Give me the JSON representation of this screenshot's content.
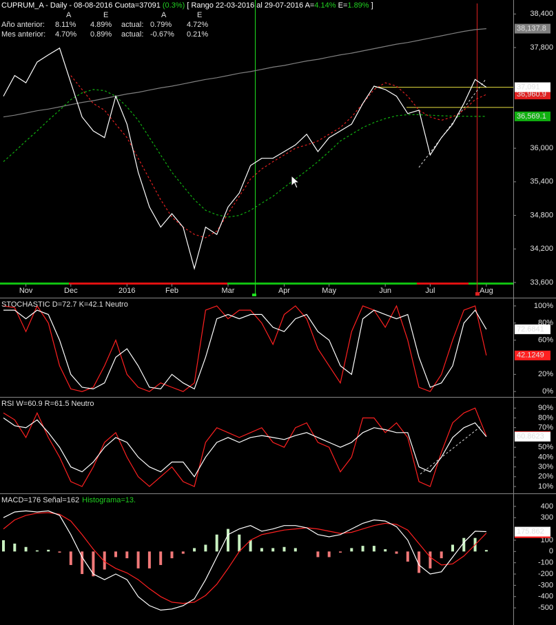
{
  "header": [
    "CUPRUM_A - Daily - 08-08-2016 Cuota=37091",
    "(0.3%)",
    "[ Rango 22-03-2016 al 29-07-2016 A=",
    "4.14%",
    "E=",
    "1.89%",
    "]"
  ],
  "stats": {
    "columns": [
      "A",
      "E",
      "A",
      "E"
    ],
    "rows": [
      {
        "label": "Año anterior:",
        "values": [
          "8.11%",
          "4.89%"
        ],
        "label2": "actual:",
        "values2": [
          "0.79%",
          "4.72%"
        ]
      },
      {
        "label": "Mes anterior:",
        "values": [
          "4.70%",
          "0.89%"
        ],
        "label2": "actual:",
        "values2": [
          "-0.67%",
          "0.21%"
        ]
      }
    ]
  },
  "chart_data": [
    {
      "type": "line",
      "categories": [
        null,
        null,
        "Nov",
        null,
        null,
        null,
        "Dec",
        null,
        null,
        null,
        null,
        "2016",
        null,
        null,
        null,
        "Feb",
        null,
        null,
        null,
        null,
        "Mar",
        null,
        null,
        null,
        null,
        "Apr",
        null,
        null,
        null,
        "May",
        null,
        null,
        null,
        null,
        "Jun",
        null,
        null,
        null,
        "Jul",
        null,
        null,
        null,
        null,
        "Aug"
      ],
      "ylim": [
        33575,
        38650
      ],
      "yticks": [
        {
          "value": 38400,
          "label": "38,400"
        },
        {
          "value": 37800,
          "label": "37,800"
        },
        {
          "value": 36000,
          "label": "36,000"
        },
        {
          "value": 35400,
          "label": "35,400"
        },
        {
          "value": 34800,
          "label": "34,800"
        },
        {
          "value": 34200,
          "label": "34,200"
        },
        {
          "value": 33600,
          "label": "33,600"
        }
      ],
      "hlines": [
        37091,
        36730
      ],
      "hline_color": "#e8e040",
      "series": [
        {
          "color": "#808080",
          "dash": false,
          "last_label": "38,137.8",
          "values": [
            36560,
            36590,
            36630,
            36670,
            36700,
            36740,
            36780,
            36820,
            36850,
            36890,
            36930,
            36970,
            37000,
            37040,
            37080,
            37110,
            37150,
            37190,
            37230,
            37260,
            37300,
            37340,
            37370,
            37410,
            37450,
            37480,
            37520,
            37560,
            37590,
            37630,
            37670,
            37700,
            37740,
            37780,
            37820,
            37860,
            37890,
            37930,
            37970,
            38010,
            38050,
            38090,
            38120,
            38137.8
          ]
        },
        {
          "color": "#10b010",
          "dash": true,
          "last_label": "36,569.1",
          "values": [
            35760,
            35940,
            36130,
            36310,
            36500,
            36680,
            36870,
            36990,
            37050,
            37030,
            36930,
            36740,
            36500,
            36190,
            35880,
            35570,
            35320,
            35080,
            34890,
            34810,
            34770,
            34800,
            34890,
            35020,
            35140,
            35300,
            35450,
            35600,
            35760,
            35940,
            36130,
            36250,
            36370,
            36460,
            36530,
            36580,
            36600,
            36600,
            36590,
            36580,
            36575,
            36572,
            36570,
            36569.1
          ]
        },
        {
          "color": "#e02020",
          "dash": true,
          "last_label": "36,960.9",
          "values": [
            null,
            null,
            null,
            null,
            null,
            null,
            37300,
            37050,
            36800,
            36680,
            36430,
            36190,
            35820,
            35450,
            35080,
            34770,
            34590,
            34460,
            34400,
            34520,
            34830,
            35140,
            35450,
            35630,
            35760,
            35880,
            36000,
            36060,
            36130,
            36250,
            36370,
            36560,
            36800,
            37050,
            37170,
            37110,
            36930,
            36680,
            36560,
            36500,
            36560,
            36680,
            36870,
            36960.9
          ]
        },
        {
          "color": "#ffffff",
          "dash": false,
          "last_label": "37,091",
          "values": [
            36930,
            37300,
            37170,
            37540,
            37670,
            37790,
            37170,
            36560,
            36310,
            36190,
            36930,
            36430,
            35570,
            34950,
            34590,
            34830,
            34590,
            33850,
            34590,
            34460,
            34950,
            35200,
            35690,
            35820,
            35820,
            35940,
            36060,
            36250,
            35940,
            36190,
            36310,
            36430,
            36800,
            37110,
            37050,
            36930,
            36620,
            36680,
            35880,
            36190,
            36430,
            36800,
            37230,
            37091
          ]
        }
      ]
    },
    {
      "type": "line",
      "title": "STOCHASTIC D=72.7 K=42.1 Neutro",
      "ylim": [
        -5.5,
        108
      ],
      "yticks": [
        {
          "value": 100,
          "label": "100%"
        },
        {
          "value": 80,
          "label": "80%"
        },
        {
          "value": 60,
          "label": "60%"
        },
        {
          "value": 20,
          "label": "20%"
        },
        {
          "value": 0,
          "label": "0%"
        }
      ],
      "series": [
        {
          "color": "#ff2020",
          "dash": false,
          "last_label": "42.1249",
          "values": [
            100,
            98,
            70,
            100,
            80,
            30,
            3,
            0,
            5,
            30,
            60,
            20,
            5,
            0,
            10,
            5,
            0,
            10,
            95,
            100,
            85,
            95,
            95,
            80,
            55,
            90,
            100,
            85,
            50,
            30,
            10,
            70,
            100,
            95,
            75,
            100,
            60,
            5,
            0,
            20,
            60,
            95,
            100,
            42.1249
          ]
        },
        {
          "color": "#ffffff",
          "dash": false,
          "last_label": "72.6841",
          "values": [
            95,
            95,
            85,
            95,
            90,
            60,
            20,
            5,
            3,
            10,
            40,
            50,
            30,
            5,
            3,
            20,
            10,
            3,
            40,
            85,
            90,
            85,
            90,
            90,
            75,
            70,
            85,
            90,
            70,
            60,
            30,
            20,
            85,
            95,
            90,
            85,
            90,
            40,
            5,
            10,
            30,
            80,
            95,
            72.6841
          ]
        }
      ]
    },
    {
      "type": "line",
      "title": "RSI W=60.9 R=61.5 Neutro",
      "ylim": [
        3.7,
        100
      ],
      "yticks": [
        {
          "value": 90,
          "label": "90%"
        },
        {
          "value": 80,
          "label": "80%"
        },
        {
          "value": 70,
          "label": "70%"
        },
        {
          "value": 50,
          "label": "50%"
        },
        {
          "value": 40,
          "label": "40%"
        },
        {
          "value": 30,
          "label": "30%"
        },
        {
          "value": 20,
          "label": "20%"
        },
        {
          "value": 10,
          "label": "10%"
        }
      ],
      "series": [
        {
          "color": "#ff2020",
          "dash": false,
          "last_label": "61.4553",
          "values": [
            85,
            78,
            60,
            85,
            60,
            40,
            15,
            10,
            30,
            55,
            65,
            40,
            20,
            10,
            20,
            30,
            15,
            10,
            55,
            70,
            65,
            60,
            65,
            70,
            55,
            50,
            70,
            75,
            55,
            50,
            25,
            40,
            80,
            80,
            65,
            75,
            60,
            15,
            10,
            45,
            75,
            85,
            90,
            61.4553
          ]
        },
        {
          "color": "#ffffff",
          "dash": false,
          "last_label": "60.8623",
          "values": [
            80,
            72,
            70,
            78,
            65,
            50,
            30,
            25,
            35,
            50,
            60,
            55,
            40,
            30,
            25,
            35,
            35,
            20,
            40,
            55,
            60,
            55,
            60,
            62,
            60,
            58,
            62,
            65,
            60,
            55,
            50,
            55,
            65,
            70,
            68,
            65,
            65,
            30,
            25,
            40,
            60,
            70,
            75,
            60.8623
          ]
        }
      ]
    },
    {
      "type": "line",
      "title": "MACD=176 Señal=162",
      "histogram_label": "Histograma=13.",
      "ylim": [
        -652,
        503
      ],
      "yticks": [
        400,
        300,
        100,
        0,
        -100,
        -200,
        -300,
        -400,
        -500
      ],
      "histogram": {
        "pos_color": "#c8f0c0",
        "neg_color": "#f07878",
        "values": [
          100,
          70,
          40,
          10,
          15,
          -10,
          -120,
          -200,
          -220,
          -160,
          -50,
          -60,
          -150,
          -150,
          -120,
          -60,
          -20,
          30,
          60,
          150,
          200,
          150,
          100,
          30,
          30,
          40,
          30,
          0,
          -50,
          -50,
          -10,
          30,
          50,
          50,
          20,
          -20,
          -90,
          -190,
          -150,
          -60,
          60,
          120,
          120,
          13
        ]
      },
      "series": [
        {
          "color": "#ff2020",
          "dash": false,
          "last_label": "162.468",
          "values": [
            200,
            280,
            320,
            340,
            345,
            330,
            270,
            150,
            20,
            -90,
            -150,
            -190,
            -250,
            -330,
            -400,
            -450,
            -460,
            -450,
            -390,
            -290,
            -150,
            0,
            100,
            150,
            170,
            190,
            200,
            210,
            200,
            180,
            160,
            170,
            200,
            230,
            250,
            240,
            190,
            70,
            -50,
            -120,
            -110,
            -40,
            60,
            162.468
          ]
        },
        {
          "color": "#ffffff",
          "dash": false,
          "last_label": "175.862",
          "values": [
            300,
            350,
            360,
            350,
            360,
            320,
            150,
            -50,
            -200,
            -250,
            -200,
            -250,
            -400,
            -480,
            -520,
            -510,
            -480,
            -420,
            -250,
            -50,
            150,
            200,
            230,
            180,
            200,
            230,
            230,
            210,
            150,
            130,
            150,
            200,
            250,
            280,
            270,
            220,
            100,
            -120,
            -200,
            -180,
            -50,
            80,
            180,
            175.862
          ]
        }
      ]
    }
  ]
}
